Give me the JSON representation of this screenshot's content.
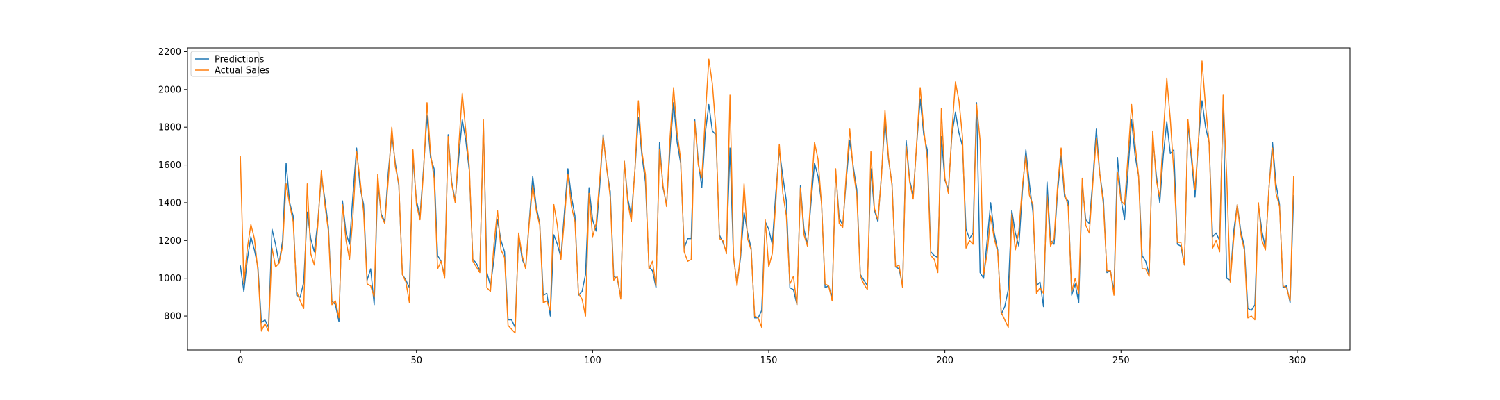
{
  "chart_data": {
    "type": "line",
    "title": "",
    "xlabel": "",
    "ylabel": "",
    "xlim": [
      -15,
      315
    ],
    "ylim": [
      620,
      2220
    ],
    "x_ticks": [
      0,
      50,
      100,
      150,
      200,
      250,
      300
    ],
    "y_ticks": [
      800,
      1000,
      1200,
      1400,
      1600,
      1800,
      2000,
      2200
    ],
    "grid": false,
    "legend": {
      "placement": "top-left"
    },
    "series": [
      {
        "name": "Predictions",
        "color": "#1f77b4",
        "values": [
          1068,
          930,
          1100,
          1220,
          1150,
          1060,
          765,
          780,
          740,
          1260,
          1180,
          1080,
          1200,
          1610,
          1400,
          1330,
          910,
          900,
          980,
          1350,
          1210,
          1140,
          1300,
          1540,
          1420,
          1270,
          880,
          860,
          770,
          1410,
          1240,
          1180,
          1450,
          1690,
          1480,
          1390,
          990,
          1050,
          860,
          1510,
          1340,
          1300,
          1560,
          1760,
          1610,
          1490,
          1020,
          990,
          950,
          1640,
          1410,
          1330,
          1580,
          1860,
          1640,
          1580,
          1120,
          1090,
          1010,
          1760,
          1510,
          1410,
          1640,
          1840,
          1730,
          1570,
          1100,
          1080,
          1040,
          1820,
          1030,
          960,
          1100,
          1310,
          1200,
          1140,
          780,
          780,
          740,
          1230,
          1100,
          1060,
          1300,
          1540,
          1380,
          1290,
          910,
          920,
          800,
          1230,
          1180,
          1110,
          1350,
          1580,
          1430,
          1330,
          910,
          930,
          1020,
          1480,
          1310,
          1250,
          1480,
          1760,
          1580,
          1460,
          1010,
          1000,
          900,
          1620,
          1420,
          1330,
          1570,
          1850,
          1650,
          1510,
          1060,
          1040,
          950,
          1720,
          1480,
          1390,
          1690,
          1930,
          1720,
          1610,
          1160,
          1210,
          1210,
          1840,
          1620,
          1480,
          1770,
          1920,
          1780,
          1760,
          1230,
          1190,
          1140,
          1690,
          1110,
          970,
          1110,
          1350,
          1240,
          1160,
          790,
          790,
          830,
          1300,
          1260,
          1180,
          1450,
          1680,
          1540,
          1410,
          950,
          940,
          860,
          1490,
          1260,
          1180,
          1400,
          1610,
          1540,
          1400,
          950,
          960,
          900,
          1570,
          1320,
          1280,
          1520,
          1730,
          1590,
          1470,
          1020,
          990,
          960,
          1580,
          1360,
          1300,
          1550,
          1840,
          1630,
          1500,
          1060,
          1050,
          960,
          1730,
          1520,
          1440,
          1710,
          1950,
          1760,
          1680,
          1140,
          1120,
          1110,
          1750,
          1520,
          1470,
          1760,
          1880,
          1770,
          1700,
          1260,
          1210,
          1240,
          1930,
          1030,
          1000,
          1200,
          1400,
          1240,
          1150,
          810,
          850,
          940,
          1360,
          1240,
          1170,
          1460,
          1680,
          1500,
          1350,
          960,
          980,
          850,
          1510,
          1200,
          1180,
          1460,
          1650,
          1430,
          1410,
          910,
          970,
          870,
          1500,
          1310,
          1290,
          1520,
          1790,
          1550,
          1420,
          1030,
          1040,
          930,
          1640,
          1420,
          1310,
          1570,
          1840,
          1650,
          1540,
          1120,
          1090,
          1020,
          1750,
          1550,
          1400,
          1650,
          1830,
          1660,
          1680,
          1180,
          1170,
          1070,
          1820,
          1630,
          1430,
          1730,
          1940,
          1800,
          1720,
          1220,
          1240,
          1200,
          1930,
          1000,
          990,
          1250,
          1390,
          1250,
          1170,
          840,
          830,
          860,
          1390,
          1250,
          1160,
          1480,
          1720,
          1500,
          1390,
          950,
          960,
          870,
          1440
        ]
      },
      {
        "name": "Actual Sales",
        "color": "#ff7f0e",
        "values": [
          1650,
          970,
          1160,
          1285,
          1210,
          1040,
          720,
          760,
          720,
          1160,
          1060,
          1080,
          1170,
          1500,
          1390,
          1300,
          930,
          880,
          840,
          1500,
          1130,
          1070,
          1280,
          1570,
          1390,
          1250,
          860,
          880,
          790,
          1390,
          1200,
          1100,
          1340,
          1670,
          1520,
          1350,
          970,
          960,
          900,
          1550,
          1330,
          1290,
          1520,
          1800,
          1590,
          1500,
          1020,
          980,
          870,
          1680,
          1390,
          1310,
          1560,
          1930,
          1660,
          1530,
          1050,
          1090,
          1000,
          1750,
          1500,
          1400,
          1700,
          1980,
          1780,
          1590,
          1090,
          1060,
          1030,
          1840,
          950,
          930,
          1180,
          1360,
          1150,
          1110,
          750,
          730,
          710,
          1240,
          1120,
          1050,
          1290,
          1490,
          1360,
          1280,
          870,
          880,
          830,
          1390,
          1280,
          1100,
          1310,
          1550,
          1380,
          1300,
          920,
          890,
          800,
          1450,
          1220,
          1290,
          1520,
          1750,
          1590,
          1430,
          990,
          1010,
          890,
          1620,
          1400,
          1300,
          1570,
          1940,
          1670,
          1550,
          1050,
          1090,
          960,
          1680,
          1490,
          1380,
          1750,
          2010,
          1770,
          1630,
          1140,
          1090,
          1100,
          1830,
          1600,
          1530,
          1860,
          2160,
          2030,
          1790,
          1210,
          1200,
          1130,
          1970,
          1120,
          960,
          1130,
          1500,
          1210,
          1150,
          800,
          790,
          740,
          1310,
          1060,
          1130,
          1400,
          1710,
          1450,
          1330,
          970,
          1010,
          860,
          1480,
          1230,
          1170,
          1440,
          1720,
          1630,
          1390,
          970,
          960,
          880,
          1580,
          1290,
          1270,
          1550,
          1790,
          1570,
          1440,
          1010,
          970,
          940,
          1670,
          1370,
          1310,
          1540,
          1890,
          1640,
          1490,
          1060,
          1070,
          950,
          1700,
          1510,
          1420,
          1720,
          2010,
          1790,
          1630,
          1120,
          1100,
          1030,
          1900,
          1530,
          1450,
          1780,
          2040,
          1940,
          1750,
          1160,
          1200,
          1180,
          1920,
          1730,
          1020,
          1130,
          1330,
          1210,
          1140,
          820,
          780,
          740,
          1340,
          1150,
          1250,
          1490,
          1650,
          1440,
          1390,
          920,
          950,
          920,
          1440,
          1170,
          1210,
          1490,
          1690,
          1450,
          1380,
          930,
          1000,
          920,
          1530,
          1280,
          1240,
          1500,
          1740,
          1550,
          1390,
          1040,
          1040,
          910,
          1560,
          1410,
          1390,
          1650,
          1920,
          1710,
          1540,
          1050,
          1050,
          1010,
          1780,
          1520,
          1430,
          1760,
          2060,
          1840,
          1560,
          1190,
          1190,
          1070,
          1840,
          1660,
          1470,
          1730,
          2150,
          1910,
          1720,
          1160,
          1200,
          1140,
          1970,
          1540,
          980,
          1210,
          1390,
          1230,
          1150,
          790,
          800,
          780,
          1400,
          1200,
          1150,
          1480,
          1690,
          1450,
          1380,
          960,
          950,
          880,
          1540
        ]
      }
    ]
  }
}
